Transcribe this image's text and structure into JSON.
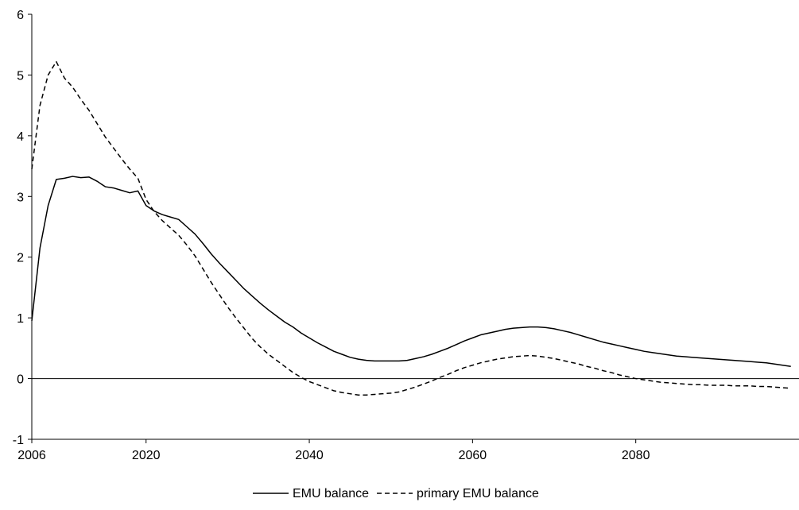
{
  "chart_data": {
    "type": "line",
    "title": "",
    "xlabel": "",
    "ylabel": "",
    "xlim": [
      2006,
      2100
    ],
    "ylim": [
      -1,
      6
    ],
    "x_ticks": [
      {
        "value": 2006,
        "label": "2006"
      },
      {
        "value": 2020,
        "label": "2020"
      },
      {
        "value": 2040,
        "label": "2040"
      },
      {
        "value": 2060,
        "label": "2060"
      },
      {
        "value": 2080,
        "label": "2080"
      }
    ],
    "y_ticks": [
      {
        "value": -1,
        "label": "-1"
      },
      {
        "value": 0,
        "label": "0"
      },
      {
        "value": 1,
        "label": "1"
      },
      {
        "value": 2,
        "label": "2"
      },
      {
        "value": 3,
        "label": "3"
      },
      {
        "value": 4,
        "label": "4"
      },
      {
        "value": 5,
        "label": "5"
      },
      {
        "value": 6,
        "label": "6"
      }
    ],
    "grid": false,
    "legend_position": "bottom-center",
    "series": [
      {
        "name": "EMU balance",
        "style": "solid",
        "color": "#000000",
        "points": [
          [
            2006,
            0.95
          ],
          [
            2007,
            2.15
          ],
          [
            2008,
            2.85
          ],
          [
            2009,
            3.28
          ],
          [
            2010,
            3.3
          ],
          [
            2011,
            3.33
          ],
          [
            2012,
            3.31
          ],
          [
            2013,
            3.32
          ],
          [
            2014,
            3.25
          ],
          [
            2015,
            3.16
          ],
          [
            2016,
            3.14
          ],
          [
            2017,
            3.1
          ],
          [
            2018,
            3.06
          ],
          [
            2019,
            3.09
          ],
          [
            2020,
            2.85
          ],
          [
            2021,
            2.76
          ],
          [
            2022,
            2.7
          ],
          [
            2023,
            2.66
          ],
          [
            2024,
            2.62
          ],
          [
            2025,
            2.5
          ],
          [
            2026,
            2.38
          ],
          [
            2027,
            2.22
          ],
          [
            2028,
            2.05
          ],
          [
            2029,
            1.9
          ],
          [
            2030,
            1.76
          ],
          [
            2031,
            1.62
          ],
          [
            2032,
            1.48
          ],
          [
            2033,
            1.36
          ],
          [
            2034,
            1.24
          ],
          [
            2035,
            1.13
          ],
          [
            2036,
            1.03
          ],
          [
            2037,
            0.93
          ],
          [
            2038,
            0.85
          ],
          [
            2039,
            0.75
          ],
          [
            2040,
            0.67
          ],
          [
            2041,
            0.59
          ],
          [
            2042,
            0.52
          ],
          [
            2043,
            0.45
          ],
          [
            2044,
            0.4
          ],
          [
            2045,
            0.35
          ],
          [
            2046,
            0.32
          ],
          [
            2047,
            0.3
          ],
          [
            2048,
            0.29
          ],
          [
            2049,
            0.29
          ],
          [
            2050,
            0.29
          ],
          [
            2051,
            0.29
          ],
          [
            2052,
            0.3
          ],
          [
            2053,
            0.33
          ],
          [
            2054,
            0.36
          ],
          [
            2055,
            0.4
          ],
          [
            2056,
            0.45
          ],
          [
            2057,
            0.5
          ],
          [
            2058,
            0.56
          ],
          [
            2059,
            0.62
          ],
          [
            2060,
            0.67
          ],
          [
            2061,
            0.72
          ],
          [
            2062,
            0.75
          ],
          [
            2063,
            0.78
          ],
          [
            2064,
            0.81
          ],
          [
            2065,
            0.83
          ],
          [
            2066,
            0.84
          ],
          [
            2067,
            0.85
          ],
          [
            2068,
            0.85
          ],
          [
            2069,
            0.84
          ],
          [
            2070,
            0.82
          ],
          [
            2071,
            0.79
          ],
          [
            2072,
            0.76
          ],
          [
            2073,
            0.72
          ],
          [
            2074,
            0.68
          ],
          [
            2075,
            0.64
          ],
          [
            2076,
            0.6
          ],
          [
            2077,
            0.57
          ],
          [
            2078,
            0.54
          ],
          [
            2079,
            0.51
          ],
          [
            2080,
            0.48
          ],
          [
            2081,
            0.45
          ],
          [
            2082,
            0.43
          ],
          [
            2083,
            0.41
          ],
          [
            2084,
            0.39
          ],
          [
            2085,
            0.37
          ],
          [
            2086,
            0.36
          ],
          [
            2087,
            0.35
          ],
          [
            2088,
            0.34
          ],
          [
            2089,
            0.33
          ],
          [
            2090,
            0.32
          ],
          [
            2091,
            0.31
          ],
          [
            2092,
            0.3
          ],
          [
            2093,
            0.29
          ],
          [
            2094,
            0.28
          ],
          [
            2095,
            0.27
          ],
          [
            2096,
            0.26
          ],
          [
            2097,
            0.24
          ],
          [
            2098,
            0.22
          ],
          [
            2099,
            0.2
          ]
        ]
      },
      {
        "name": "primary EMU balance",
        "style": "dashed",
        "color": "#000000",
        "points": [
          [
            2006,
            3.45
          ],
          [
            2007,
            4.5
          ],
          [
            2008,
            5.0
          ],
          [
            2009,
            5.22
          ],
          [
            2010,
            4.95
          ],
          [
            2011,
            4.8
          ],
          [
            2012,
            4.6
          ],
          [
            2013,
            4.42
          ],
          [
            2014,
            4.2
          ],
          [
            2015,
            3.98
          ],
          [
            2016,
            3.8
          ],
          [
            2017,
            3.62
          ],
          [
            2018,
            3.45
          ],
          [
            2019,
            3.3
          ],
          [
            2020,
            2.95
          ],
          [
            2021,
            2.75
          ],
          [
            2022,
            2.6
          ],
          [
            2023,
            2.48
          ],
          [
            2024,
            2.36
          ],
          [
            2025,
            2.2
          ],
          [
            2026,
            2.02
          ],
          [
            2027,
            1.8
          ],
          [
            2028,
            1.58
          ],
          [
            2029,
            1.38
          ],
          [
            2030,
            1.18
          ],
          [
            2031,
            1.0
          ],
          [
            2032,
            0.83
          ],
          [
            2033,
            0.66
          ],
          [
            2034,
            0.52
          ],
          [
            2035,
            0.4
          ],
          [
            2036,
            0.3
          ],
          [
            2037,
            0.2
          ],
          [
            2038,
            0.1
          ],
          [
            2039,
            0.02
          ],
          [
            2040,
            -0.05
          ],
          [
            2041,
            -0.1
          ],
          [
            2042,
            -0.15
          ],
          [
            2043,
            -0.2
          ],
          [
            2044,
            -0.23
          ],
          [
            2045,
            -0.25
          ],
          [
            2046,
            -0.27
          ],
          [
            2047,
            -0.27
          ],
          [
            2048,
            -0.26
          ],
          [
            2049,
            -0.25
          ],
          [
            2050,
            -0.24
          ],
          [
            2051,
            -0.22
          ],
          [
            2052,
            -0.18
          ],
          [
            2053,
            -0.14
          ],
          [
            2054,
            -0.09
          ],
          [
            2055,
            -0.04
          ],
          [
            2056,
            0.02
          ],
          [
            2057,
            0.07
          ],
          [
            2058,
            0.13
          ],
          [
            2059,
            0.18
          ],
          [
            2060,
            0.22
          ],
          [
            2061,
            0.26
          ],
          [
            2062,
            0.29
          ],
          [
            2063,
            0.32
          ],
          [
            2064,
            0.34
          ],
          [
            2065,
            0.36
          ],
          [
            2066,
            0.37
          ],
          [
            2067,
            0.38
          ],
          [
            2068,
            0.37
          ],
          [
            2069,
            0.35
          ],
          [
            2070,
            0.33
          ],
          [
            2071,
            0.3
          ],
          [
            2072,
            0.27
          ],
          [
            2073,
            0.24
          ],
          [
            2074,
            0.2
          ],
          [
            2075,
            0.17
          ],
          [
            2076,
            0.13
          ],
          [
            2077,
            0.1
          ],
          [
            2078,
            0.06
          ],
          [
            2079,
            0.03
          ],
          [
            2080,
            0.0
          ],
          [
            2081,
            -0.02
          ],
          [
            2082,
            -0.04
          ],
          [
            2083,
            -0.06
          ],
          [
            2084,
            -0.07
          ],
          [
            2085,
            -0.08
          ],
          [
            2086,
            -0.09
          ],
          [
            2087,
            -0.1
          ],
          [
            2088,
            -0.1
          ],
          [
            2089,
            -0.11
          ],
          [
            2090,
            -0.11
          ],
          [
            2091,
            -0.11
          ],
          [
            2092,
            -0.12
          ],
          [
            2093,
            -0.12
          ],
          [
            2094,
            -0.12
          ],
          [
            2095,
            -0.13
          ],
          [
            2096,
            -0.13
          ],
          [
            2097,
            -0.14
          ],
          [
            2098,
            -0.15
          ],
          [
            2099,
            -0.16
          ]
        ]
      }
    ]
  }
}
